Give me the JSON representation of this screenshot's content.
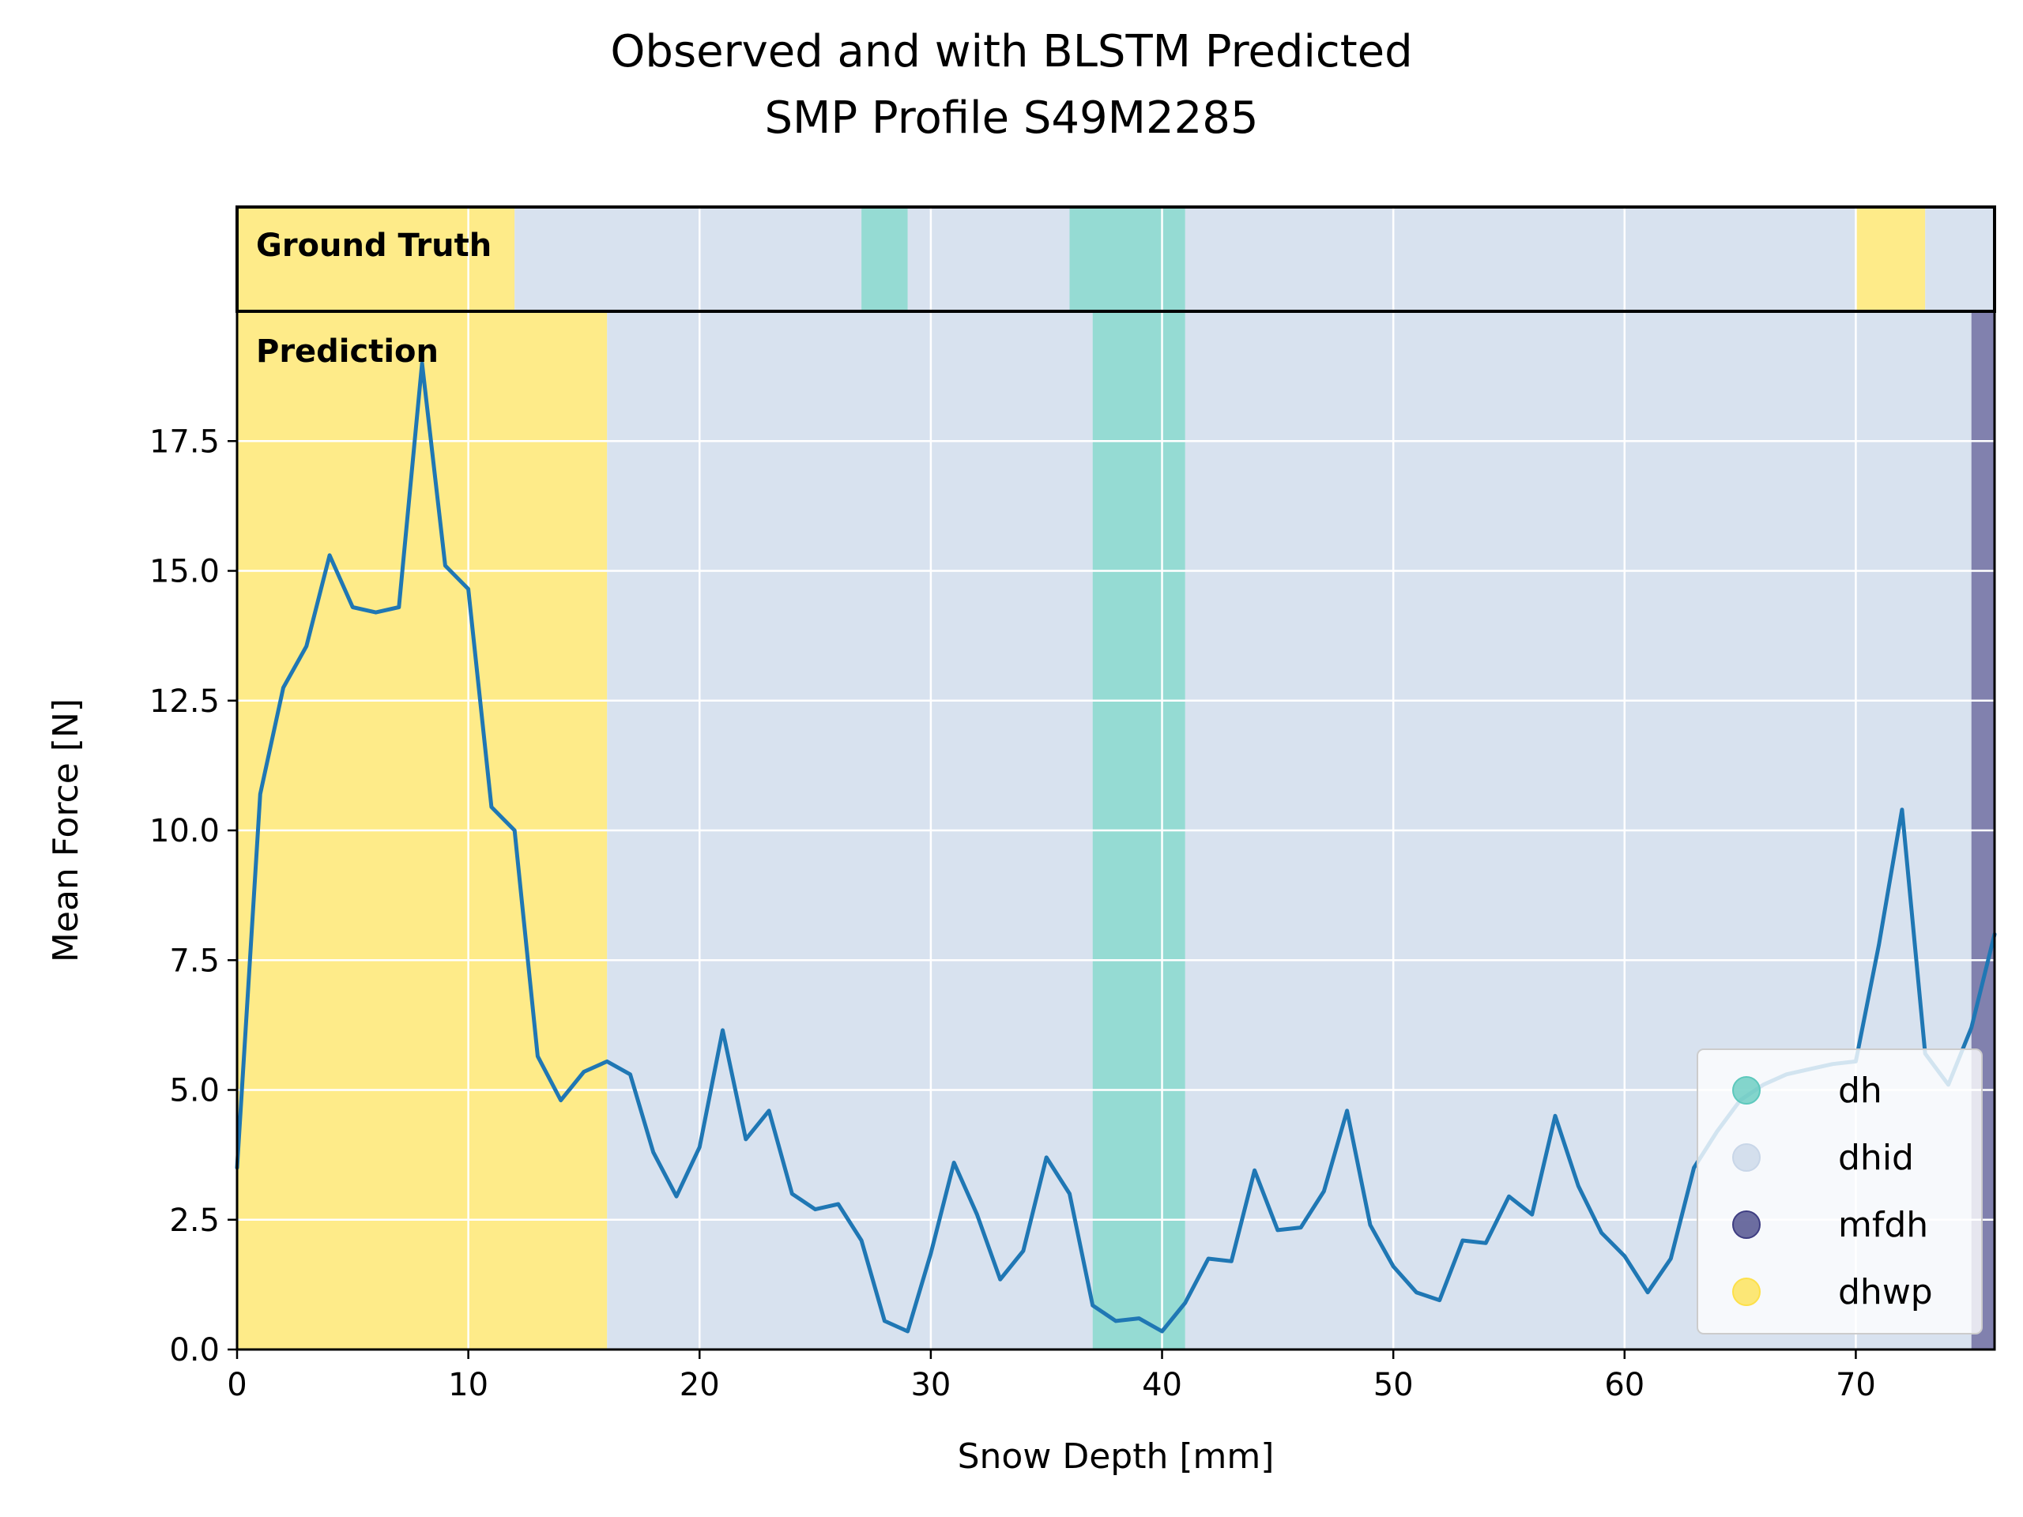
{
  "chart_data": {
    "type": "line",
    "title": "Observed and with BLSTM Predicted",
    "subtitle": "SMP Profile S49M2285",
    "xlabel": "Snow Depth [mm]",
    "ylabel": "Mean Force [N]",
    "xlim": [
      0,
      76
    ],
    "ylim": [
      0,
      20
    ],
    "x_ticks": [
      0,
      10,
      20,
      30,
      40,
      50,
      60,
      70
    ],
    "y_ticks": [
      0.0,
      2.5,
      5.0,
      7.5,
      10.0,
      12.5,
      15.0,
      17.5
    ],
    "x_tick_labels": [
      "0",
      "10",
      "20",
      "30",
      "40",
      "50",
      "60",
      "70"
    ],
    "y_tick_labels": [
      "0.0",
      "2.5",
      "5.0",
      "7.5",
      "10.0",
      "12.5",
      "15.0",
      "17.5"
    ],
    "grid": true,
    "legend_position": "bottom-right",
    "line_color": "#1f77b4",
    "classes": [
      {
        "name": "dh",
        "color": "#5cc8bc"
      },
      {
        "name": "dhid",
        "color": "#c8d6e8"
      },
      {
        "name": "mfdh",
        "color": "#3e3d82"
      },
      {
        "name": "dhwp",
        "color": "#fde049"
      }
    ],
    "ground_truth": {
      "label": "Ground Truth",
      "segments": [
        {
          "from": 0,
          "to": 12,
          "class": "dhwp"
        },
        {
          "from": 12,
          "to": 27,
          "class": "dhid"
        },
        {
          "from": 27,
          "to": 29,
          "class": "dh"
        },
        {
          "from": 29,
          "to": 36,
          "class": "dhid"
        },
        {
          "from": 36,
          "to": 41,
          "class": "dh"
        },
        {
          "from": 41,
          "to": 70,
          "class": "dhid"
        },
        {
          "from": 70,
          "to": 73,
          "class": "dhwp"
        },
        {
          "from": 73,
          "to": 76,
          "class": "dhid"
        }
      ]
    },
    "prediction": {
      "label": "Prediction",
      "segments": [
        {
          "from": 0,
          "to": 16,
          "class": "dhwp"
        },
        {
          "from": 16,
          "to": 37,
          "class": "dhid"
        },
        {
          "from": 37,
          "to": 41,
          "class": "dh"
        },
        {
          "from": 41,
          "to": 75,
          "class": "dhid"
        },
        {
          "from": 75,
          "to": 76,
          "class": "mfdh"
        }
      ]
    },
    "series": [
      {
        "x": [
          0,
          1,
          2,
          3,
          4,
          5,
          6,
          7,
          8,
          9,
          10,
          11,
          12,
          13,
          14,
          15,
          16,
          17,
          18,
          19,
          20,
          21,
          22,
          23,
          24,
          25,
          26,
          27,
          28,
          29,
          30,
          31,
          32,
          33,
          34,
          35,
          36,
          37,
          38,
          39,
          40,
          41,
          42,
          43,
          44,
          45,
          46,
          47,
          48,
          49,
          50,
          51,
          52,
          53,
          54,
          55,
          56,
          57,
          58,
          59,
          60,
          61,
          62,
          63,
          64,
          65,
          66,
          67,
          68,
          69,
          70,
          71,
          72,
          73,
          74,
          75,
          76
        ],
        "values": [
          3.5,
          10.7,
          12.75,
          13.55,
          15.3,
          14.3,
          14.2,
          14.3,
          19.0,
          15.1,
          14.65,
          10.45,
          10.0,
          5.65,
          4.8,
          5.35,
          5.55,
          5.3,
          3.8,
          2.95,
          3.9,
          6.15,
          4.05,
          4.6,
          3.0,
          2.7,
          2.8,
          2.1,
          0.55,
          0.35,
          1.85,
          3.6,
          2.6,
          1.35,
          1.9,
          3.7,
          3.0,
          0.85,
          0.55,
          0.6,
          0.35,
          0.9,
          1.75,
          1.7,
          3.45,
          2.3,
          2.35,
          3.05,
          4.6,
          2.4,
          1.6,
          1.1,
          0.95,
          2.1,
          2.05,
          2.95,
          2.6,
          4.5,
          3.15,
          2.25,
          1.8,
          1.1,
          1.75,
          3.5,
          4.2,
          4.8,
          5.1,
          5.3,
          5.4,
          5.5,
          5.55,
          7.8,
          10.4,
          5.7,
          5.1,
          6.2,
          8.0
        ]
      }
    ]
  }
}
